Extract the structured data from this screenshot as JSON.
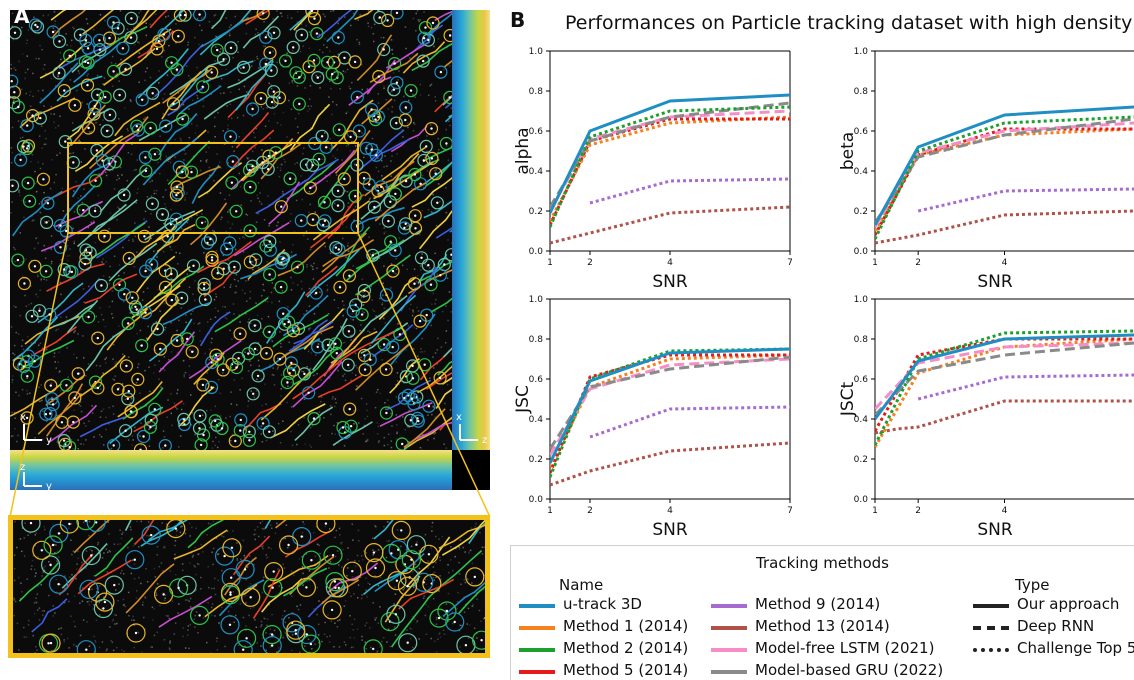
{
  "panels": {
    "a": "A",
    "b": "B"
  },
  "figure_title": "Performances on Particle tracking dataset with high density",
  "microscopy": {
    "axes_main": [
      "x",
      "y"
    ],
    "axes_side": [
      "x",
      "z"
    ],
    "axes_bottom": [
      "z",
      "y"
    ],
    "highlight_color": "#f2c21b"
  },
  "chart_data": [
    {
      "type": "line",
      "ylabel": "alpha",
      "xlabel": "SNR",
      "xlim": [
        1,
        7
      ],
      "ylim": [
        0,
        1.0
      ],
      "xticks": [
        "1",
        "2",
        "4",
        "7"
      ],
      "yticks": [
        "0.0",
        "0.2",
        "0.4",
        "0.6",
        "0.8",
        "1.0"
      ],
      "series": [
        {
          "key": "m13",
          "x": [
            1,
            2,
            4,
            7
          ],
          "y": [
            0.04,
            0.09,
            0.19,
            0.22
          ]
        },
        {
          "key": "m9",
          "x": [
            2,
            4,
            7
          ],
          "y": [
            0.24,
            0.35,
            0.36
          ]
        },
        {
          "key": "m1",
          "x": [
            1,
            2,
            4,
            7
          ],
          "y": [
            0.15,
            0.53,
            0.64,
            0.67
          ]
        },
        {
          "key": "m5",
          "x": [
            1,
            2,
            4,
            7
          ],
          "y": [
            0.13,
            0.55,
            0.66,
            0.66
          ]
        },
        {
          "key": "lstm",
          "x": [
            1,
            2,
            4,
            7
          ],
          "y": [
            0.2,
            0.56,
            0.67,
            0.7
          ]
        },
        {
          "key": "gru",
          "x": [
            1,
            2,
            4,
            7
          ],
          "y": [
            0.22,
            0.55,
            0.67,
            0.74
          ]
        },
        {
          "key": "m2",
          "x": [
            1,
            2,
            4,
            7
          ],
          "y": [
            0.12,
            0.57,
            0.7,
            0.72
          ]
        },
        {
          "key": "utrack",
          "x": [
            1,
            2,
            4,
            7
          ],
          "y": [
            0.19,
            0.6,
            0.75,
            0.78
          ]
        }
      ]
    },
    {
      "type": "line",
      "ylabel": "beta",
      "xlabel": "SNR",
      "xlim": [
        1,
        7
      ],
      "ylim": [
        0,
        1.0
      ],
      "xticks": [
        "1",
        "2",
        "4"
      ],
      "yticks": [
        "0.0",
        "0.2",
        "0.4",
        "0.6",
        "0.8",
        "1.0"
      ],
      "series": [
        {
          "key": "m13",
          "x": [
            1,
            2,
            4,
            7
          ],
          "y": [
            0.04,
            0.08,
            0.18,
            0.2
          ]
        },
        {
          "key": "m9",
          "x": [
            2,
            4,
            7
          ],
          "y": [
            0.2,
            0.3,
            0.31
          ]
        },
        {
          "key": "m1",
          "x": [
            1,
            2,
            4,
            7
          ],
          "y": [
            0.1,
            0.48,
            0.58,
            0.61
          ]
        },
        {
          "key": "m5",
          "x": [
            1,
            2,
            4,
            7
          ],
          "y": [
            0.08,
            0.48,
            0.61,
            0.61
          ]
        },
        {
          "key": "lstm",
          "x": [
            1,
            2,
            4,
            7
          ],
          "y": [
            0.12,
            0.49,
            0.6,
            0.64
          ]
        },
        {
          "key": "gru",
          "x": [
            1,
            2,
            4,
            7
          ],
          "y": [
            0.14,
            0.47,
            0.58,
            0.66
          ]
        },
        {
          "key": "m2",
          "x": [
            1,
            2,
            4,
            7
          ],
          "y": [
            0.06,
            0.5,
            0.64,
            0.67
          ]
        },
        {
          "key": "utrack",
          "x": [
            1,
            2,
            4,
            7
          ],
          "y": [
            0.13,
            0.52,
            0.68,
            0.72
          ]
        }
      ]
    },
    {
      "type": "line",
      "ylabel": "JSC",
      "xlabel": "SNR",
      "xlim": [
        1,
        7
      ],
      "ylim": [
        0,
        1.0
      ],
      "xticks": [
        "1",
        "2",
        "4",
        "7"
      ],
      "yticks": [
        "0.0",
        "0.2",
        "0.4",
        "0.6",
        "0.8",
        "1.0"
      ],
      "series": [
        {
          "key": "m13",
          "x": [
            1,
            2,
            4,
            7
          ],
          "y": [
            0.07,
            0.14,
            0.24,
            0.28
          ]
        },
        {
          "key": "m9",
          "x": [
            2,
            4,
            7
          ],
          "y": [
            0.31,
            0.45,
            0.46
          ]
        },
        {
          "key": "m1",
          "x": [
            1,
            2,
            4,
            7
          ],
          "y": [
            0.16,
            0.56,
            0.7,
            0.72
          ]
        },
        {
          "key": "m5",
          "x": [
            1,
            2,
            4,
            7
          ],
          "y": [
            0.13,
            0.61,
            0.72,
            0.72
          ]
        },
        {
          "key": "lstm",
          "x": [
            1,
            2,
            4,
            7
          ],
          "y": [
            0.22,
            0.55,
            0.67,
            0.7
          ]
        },
        {
          "key": "gru",
          "x": [
            1,
            2,
            4,
            7
          ],
          "y": [
            0.25,
            0.56,
            0.65,
            0.71
          ]
        },
        {
          "key": "m2",
          "x": [
            1,
            2,
            4,
            7
          ],
          "y": [
            0.11,
            0.6,
            0.74,
            0.75
          ]
        },
        {
          "key": "utrack",
          "x": [
            1,
            2,
            4,
            7
          ],
          "y": [
            0.18,
            0.59,
            0.73,
            0.75
          ]
        }
      ]
    },
    {
      "type": "line",
      "ylabel": "JSCt",
      "xlabel": "SNR",
      "xlim": [
        1,
        7
      ],
      "ylim": [
        0,
        1.0
      ],
      "xticks": [
        "1",
        "2",
        "4"
      ],
      "yticks": [
        "0.0",
        "0.2",
        "0.4",
        "0.6",
        "0.8",
        "1.0"
      ],
      "series": [
        {
          "key": "m13",
          "x": [
            1,
            1.5,
            2,
            4,
            7
          ],
          "y": [
            0.33,
            0.35,
            0.36,
            0.49,
            0.49
          ]
        },
        {
          "key": "m9",
          "x": [
            2,
            4,
            7
          ],
          "y": [
            0.5,
            0.61,
            0.62
          ]
        },
        {
          "key": "m1",
          "x": [
            1,
            2,
            4,
            7
          ],
          "y": [
            0.26,
            0.63,
            0.76,
            0.8
          ]
        },
        {
          "key": "m5",
          "x": [
            1,
            2,
            4,
            7
          ],
          "y": [
            0.34,
            0.72,
            0.8,
            0.8
          ]
        },
        {
          "key": "lstm",
          "x": [
            1,
            2,
            4,
            7
          ],
          "y": [
            0.45,
            0.68,
            0.76,
            0.78
          ]
        },
        {
          "key": "gru",
          "x": [
            1,
            2,
            4,
            7
          ],
          "y": [
            0.42,
            0.64,
            0.72,
            0.78
          ]
        },
        {
          "key": "m2",
          "x": [
            1,
            2,
            4,
            7
          ],
          "y": [
            0.27,
            0.7,
            0.83,
            0.84
          ]
        },
        {
          "key": "utrack",
          "x": [
            1,
            2,
            4,
            7
          ],
          "y": [
            0.4,
            0.69,
            0.8,
            0.82
          ]
        }
      ]
    }
  ],
  "styles": {
    "utrack": {
      "color": "#1f8fc3",
      "dash": "solid"
    },
    "m1": {
      "color": "#f5801f",
      "dash": "dotted"
    },
    "m2": {
      "color": "#1aa12c",
      "dash": "dotted"
    },
    "m5": {
      "color": "#e41a1c",
      "dash": "dotted"
    },
    "m9": {
      "color": "#a76bd0",
      "dash": "dotted"
    },
    "m13": {
      "color": "#b0524a",
      "dash": "dotted"
    },
    "lstm": {
      "color": "#f48dc8",
      "dash": "dashed"
    },
    "gru": {
      "color": "#8a8a8a",
      "dash": "dashed"
    }
  },
  "legend": {
    "title": "Tracking methods",
    "name_header": "Name",
    "type_header": "Type",
    "names": [
      {
        "key": "utrack",
        "label": "u-track 3D"
      },
      {
        "key": "m1",
        "label": "Method 1 (2014)"
      },
      {
        "key": "m2",
        "label": "Method 2 (2014)"
      },
      {
        "key": "m5",
        "label": "Method 5 (2014)"
      },
      {
        "key": "m9",
        "label": "Method 9 (2014)"
      },
      {
        "key": "m13",
        "label": "Method 13 (2014)"
      },
      {
        "key": "lstm",
        "label": "Model-free LSTM (2021)"
      },
      {
        "key": "gru",
        "label": "Model-based GRU (2022)"
      }
    ],
    "types": [
      {
        "dash": "solid",
        "label": "Our approach"
      },
      {
        "dash": "dashed",
        "label": "Deep RNN"
      },
      {
        "dash": "dotted",
        "label": "Challenge Top 5"
      }
    ]
  }
}
